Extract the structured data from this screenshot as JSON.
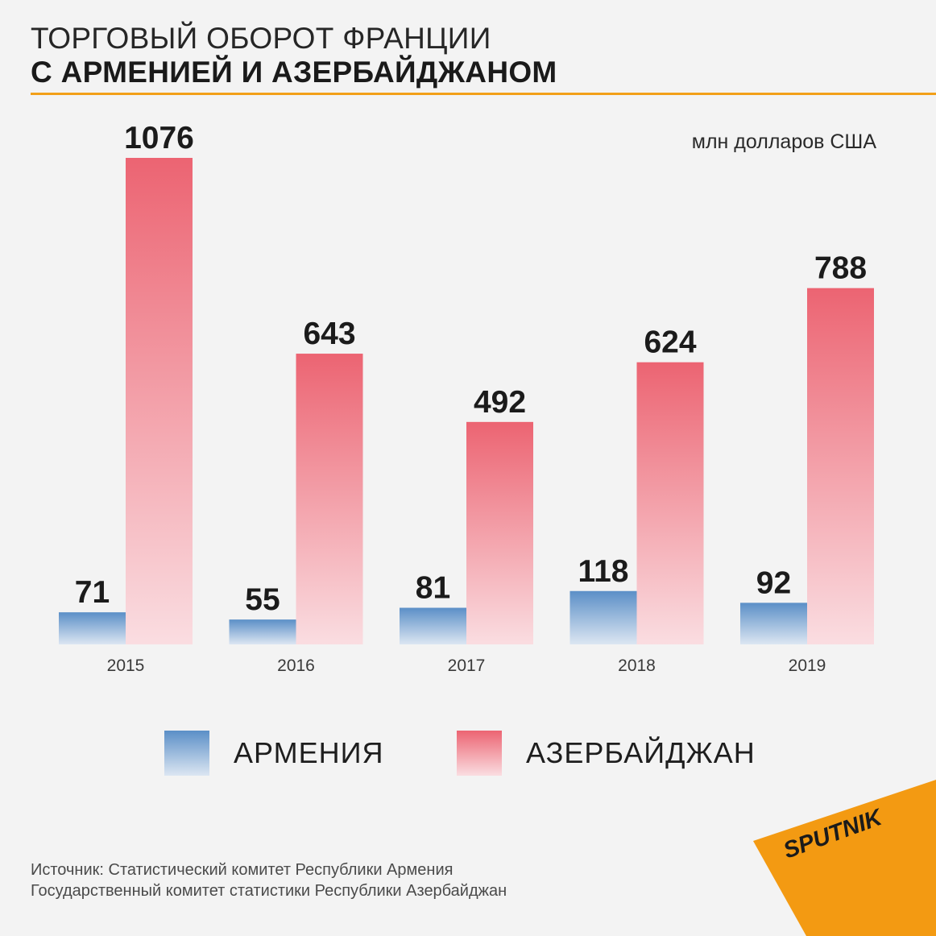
{
  "title": {
    "line1": "ТОРГОВЫЙ ОБОРОТ ФРАНЦИИ",
    "line2": "С АРМЕНИЕЙ И АЗЕРБАЙДЖАНОМ"
  },
  "unit": "млн долларов США",
  "colors": {
    "armenia_top": "#5b8fc7",
    "armenia_bottom": "#dce6f2",
    "azerbaijan_top": "#ec6472",
    "azerbaijan_bottom": "#fadde1",
    "accent": "#f2a019"
  },
  "chart_data": {
    "type": "bar",
    "categories": [
      "2015",
      "2016",
      "2017",
      "2018",
      "2019"
    ],
    "series": [
      {
        "name": "АРМЕНИЯ",
        "values": [
          71,
          55,
          81,
          118,
          92
        ]
      },
      {
        "name": "АЗЕРБАЙДЖАН",
        "values": [
          1076,
          643,
          492,
          624,
          788
        ]
      }
    ],
    "title": "ТОРГОВЫЙ ОБОРОТ ФРАНЦИИ С АРМЕНИЕЙ И АЗЕРБАЙДЖАНОМ",
    "ylabel": "млн долларов США",
    "ylim": [
      0,
      1076
    ],
    "grid": false,
    "legend": "bottom",
    "data_labels": true
  },
  "legend": {
    "armenia": "АРМЕНИЯ",
    "azerbaijan": "АЗЕРБАЙДЖАН"
  },
  "source": {
    "line1": "Источник:  Статистический комитет Республики Армения",
    "line2": "Государственный комитет статистики Республики Азербайджан"
  },
  "logo": {
    "text": "SPUTNIK",
    "icon": "sputnik-logo-icon",
    "color": "#f39a12"
  }
}
